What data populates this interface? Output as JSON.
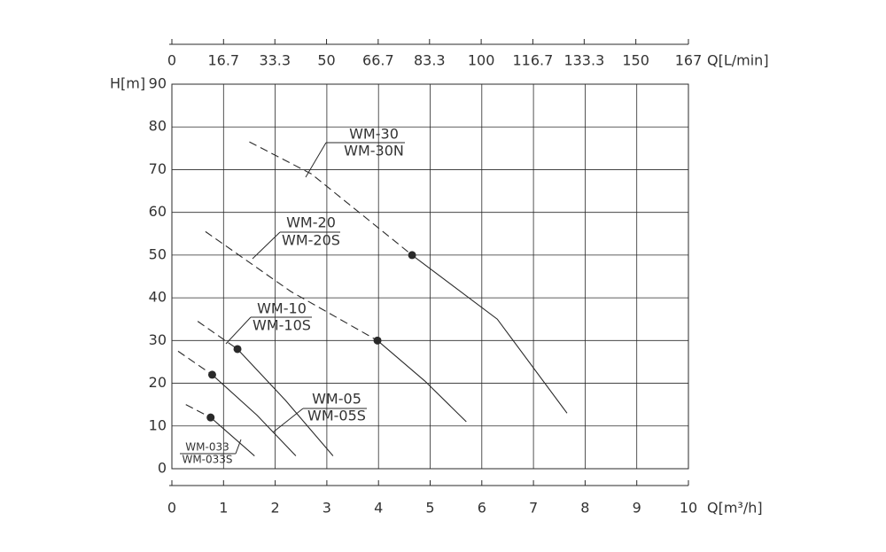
{
  "chart_data": {
    "type": "line",
    "xlabel": "Q[m³/h]",
    "ylabel": "H[m]",
    "x2label": "Q[L/min]",
    "xlim": [
      0,
      10
    ],
    "xticks": [
      0,
      1,
      2,
      3,
      4,
      5,
      6,
      7,
      8,
      9,
      10
    ],
    "x2lim": [
      0,
      167
    ],
    "x2ticks": [
      0,
      16.7,
      33.3,
      50,
      66.7,
      83.3,
      100,
      116.7,
      133.3,
      150,
      167
    ],
    "ylim": [
      0,
      90
    ],
    "yticks": [
      0,
      10,
      20,
      30,
      40,
      50,
      60,
      70,
      80,
      90
    ],
    "grid": true,
    "color": "#2a2a2a",
    "series": [
      {
        "name": "WM-30",
        "label2": "WM-30N",
        "x": [
          1.5,
          2.7,
          4.65,
          6.3,
          7.65
        ],
        "values": [
          76.5,
          69,
          50,
          35,
          13
        ],
        "operating_point": 2
      },
      {
        "name": "WM-20",
        "label2": "WM-20S",
        "x": [
          0.65,
          2.3,
          3.98,
          4.9,
          5.7
        ],
        "values": [
          55.5,
          41.5,
          30,
          20.5,
          11
        ],
        "operating_point": 2
      },
      {
        "name": "WM-10",
        "label2": "WM-10S",
        "x": [
          0.5,
          1.27,
          2.2,
          3.12
        ],
        "values": [
          34.5,
          28,
          16,
          3
        ],
        "operating_point": 1
      },
      {
        "name": "WM-05",
        "label2": "WM-05S",
        "x": [
          0.12,
          0.78,
          1.65,
          2.4
        ],
        "values": [
          27.5,
          22,
          12.5,
          3
        ],
        "operating_point": 1
      },
      {
        "name": "WM-033",
        "label2": "WM-033S",
        "x": [
          0.27,
          0.75,
          1.6
        ],
        "values": [
          15,
          12,
          3
        ],
        "operating_point": 1
      }
    ]
  }
}
